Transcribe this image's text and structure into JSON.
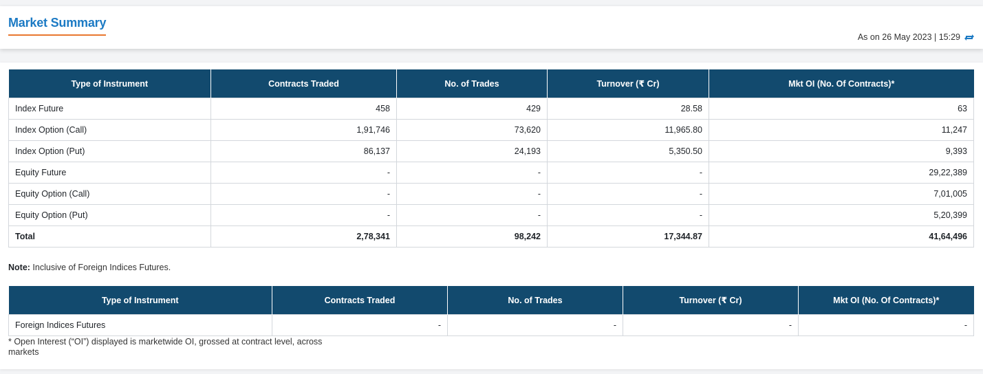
{
  "header": {
    "title": "Market Summary",
    "as_on": "As on 26 May 2023 | 15:29",
    "accent_color": "#1c7ac4",
    "underline_color": "#e9772e",
    "refresh_icon": "refresh-icon"
  },
  "table_main": {
    "header_bg": "#124a6e",
    "columns": [
      "Type of Instrument",
      "Contracts Traded",
      "No. of Trades",
      "Turnover (₹ Cr)",
      "Mkt OI (No. Of Contracts)*"
    ],
    "rows": [
      [
        "Index Future",
        "458",
        "429",
        "28.58",
        "63"
      ],
      [
        "Index Option (Call)",
        "1,91,746",
        "73,620",
        "11,965.80",
        "11,247"
      ],
      [
        "Index Option (Put)",
        "86,137",
        "24,193",
        "5,350.50",
        "9,393"
      ],
      [
        "Equity Future",
        "-",
        "-",
        "-",
        "29,22,389"
      ],
      [
        "Equity Option (Call)",
        "-",
        "-",
        "-",
        "7,01,005"
      ],
      [
        "Equity Option (Put)",
        "-",
        "-",
        "-",
        "5,20,399"
      ],
      [
        "Total",
        "2,78,341",
        "98,242",
        "17,344.87",
        "41,64,496"
      ]
    ]
  },
  "note": {
    "label": "Note:",
    "text": " Inclusive of Foreign Indices Futures."
  },
  "table_foreign": {
    "columns": [
      "Type of Instrument",
      "Contracts Traded",
      "No. of Trades",
      "Turnover (₹ Cr)",
      "Mkt OI (No. Of Contracts)*"
    ],
    "rows": [
      [
        "Foreign Indices Futures",
        "-",
        "-",
        "-",
        "-"
      ]
    ]
  },
  "footnote": "* Open Interest (“OI”) displayed is marketwide OI, grossed at contract level, across markets"
}
